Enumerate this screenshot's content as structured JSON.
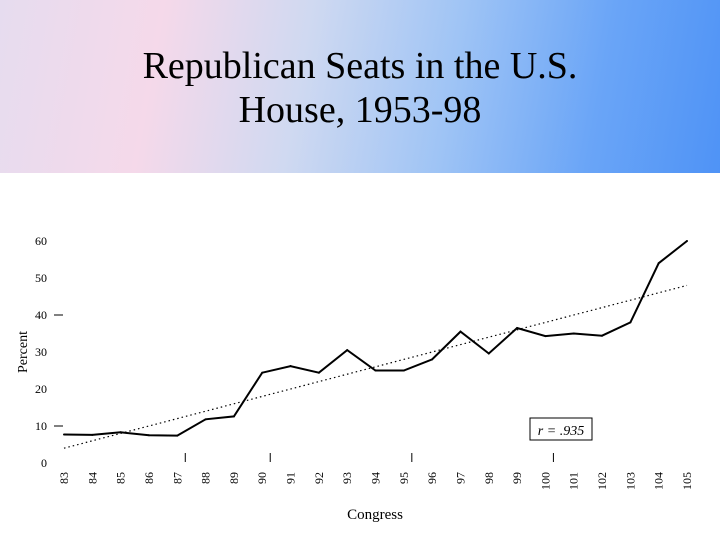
{
  "slide": {
    "title_line1": "Republican Seats in the U.S.",
    "title_line2": "House, 1953-98",
    "header_colors": [
      "#f5d9ea",
      "#9fc4f5",
      "#4f93f6"
    ]
  },
  "chart_data": {
    "type": "line",
    "title": "",
    "xlabel": "Congress",
    "ylabel": "Percent",
    "categories": [
      "83",
      "84",
      "85",
      "86",
      "87",
      "88",
      "89",
      "90",
      "91",
      "92",
      "93",
      "94",
      "95",
      "96",
      "97",
      "98",
      "99",
      "100",
      "101",
      "102",
      "103",
      "104",
      "105"
    ],
    "series": [
      {
        "values": [
          7.7,
          7.6,
          8.3,
          7.5,
          7.4,
          11.8,
          12.6,
          24.4,
          26.2,
          24.4,
          30.5,
          25.0,
          25.0,
          28.0,
          35.5,
          29.6,
          36.5,
          34.3,
          35.0,
          34.4,
          38.0,
          54.0,
          60.0
        ]
      }
    ],
    "trendline": {
      "style": "dotted",
      "start": 4.0,
      "end": 48.0
    },
    "annotation": "r = .935",
    "yticks": [
      0,
      10,
      20,
      30,
      40,
      50,
      60
    ],
    "ylim": [
      0,
      60
    ],
    "grid": false,
    "legend": "none"
  }
}
